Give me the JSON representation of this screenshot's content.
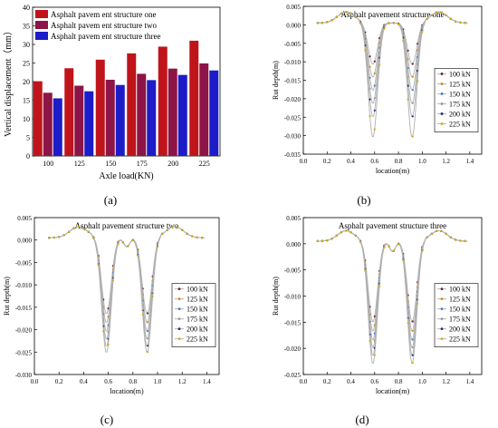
{
  "panel_labels": [
    "(a)",
    "(b)",
    "(c)",
    "(d)"
  ],
  "chart_data": [
    {
      "id": "a",
      "type": "bar",
      "title": "",
      "xlabel": "Axle load(KN)",
      "ylabel": "Vertical displacement（mm）",
      "categories": [
        "100",
        "125",
        "150",
        "175",
        "200",
        "225"
      ],
      "ylim": [
        0,
        40
      ],
      "yticks": [
        0,
        5,
        10,
        15,
        20,
        25,
        30,
        35,
        40
      ],
      "legend_position": "top-left",
      "series": [
        {
          "name": "Asphalt pavem ent structure one",
          "color": "#c0141b",
          "values": [
            20.1,
            23.6,
            25.9,
            27.6,
            29.4,
            31.0
          ]
        },
        {
          "name": "Asphalt pavem ent structure two",
          "color": "#8c1447",
          "values": [
            17.0,
            18.9,
            20.5,
            22.1,
            23.5,
            24.9
          ]
        },
        {
          "name": "Asphalt pavem ent structure three",
          "color": "#1c1cc8",
          "values": [
            15.5,
            17.4,
            19.1,
            20.4,
            21.8,
            23.0
          ]
        }
      ]
    },
    {
      "id": "b",
      "type": "line",
      "title": "Asphalt pavement structure one",
      "xlabel": "location(m)",
      "ylabel": "Rut depth(m)",
      "xlim": [
        0.0,
        1.5
      ],
      "ylim": [
        -0.035,
        0.005
      ],
      "xticks": [
        "0.0",
        "0.2",
        "0.4",
        "0.6",
        "0.8",
        "1.0",
        "1.2",
        "1.4"
      ],
      "yticks": [
        "0.005",
        "0.000",
        "-0.005",
        "-0.010",
        "-0.015",
        "-0.020",
        "-0.025",
        "-0.030",
        "-0.035"
      ],
      "legend_position": "right",
      "peak": 0.003,
      "center": 0.0005,
      "minima": [
        -0.0107,
        -0.0142,
        -0.0178,
        -0.0214,
        -0.025,
        -0.0305
      ],
      "series_names": [
        "100 kN",
        "125 kN",
        "150 kN",
        "175 kN",
        "200 kN",
        "225 kN"
      ]
    },
    {
      "id": "c",
      "type": "line",
      "title": "Asphalt pavement structure two",
      "xlabel": "location(m)",
      "ylabel": "Rut depth(m)",
      "xlim": [
        0.0,
        1.5
      ],
      "ylim": [
        -0.03,
        0.005
      ],
      "xticks": [
        "0.0",
        "0.2",
        "0.4",
        "0.6",
        "0.8",
        "1.0",
        "1.2",
        "1.4"
      ],
      "yticks": [
        "0.005",
        "0.000",
        "-0.005",
        "-0.010",
        "-0.015",
        "-0.020",
        "-0.025",
        "-0.030"
      ],
      "legend_position": "right",
      "peak": 0.0025,
      "center": -0.0015,
      "minima": [
        -0.0165,
        -0.0185,
        -0.0205,
        -0.0222,
        -0.0238,
        -0.0252
      ],
      "series_names": [
        "100 kN",
        "125 kN",
        "150 kN",
        "175 kN",
        "200 kN",
        "225 kN"
      ]
    },
    {
      "id": "d",
      "type": "line",
      "title": "Asphalt pavement structure three",
      "xlabel": "location(m)",
      "ylabel": "Rut depth(m)",
      "xlim": [
        0.0,
        1.5
      ],
      "ylim": [
        -0.025,
        0.005
      ],
      "xticks": [
        "0.0",
        "0.2",
        "0.4",
        "0.6",
        "0.8",
        "1.0",
        "1.2",
        "1.4"
      ],
      "yticks": [
        "0.005",
        "0.000",
        "-0.005",
        "-0.010",
        "-0.015",
        "-0.020",
        "-0.025"
      ],
      "legend_position": "right",
      "peak": 0.002,
      "center": -0.0015,
      "minima": [
        -0.015,
        -0.0168,
        -0.0185,
        -0.02,
        -0.0215,
        -0.023
      ],
      "series_names": [
        "100 kN",
        "125 kN",
        "150 kN",
        "175 kN",
        "200 kN",
        "225 kN"
      ]
    }
  ],
  "series_colors": [
    "#6b1f3a",
    "#d09000",
    "#3a7fd8",
    "#9a9a9a",
    "#1b2a8a",
    "#d4b000"
  ]
}
